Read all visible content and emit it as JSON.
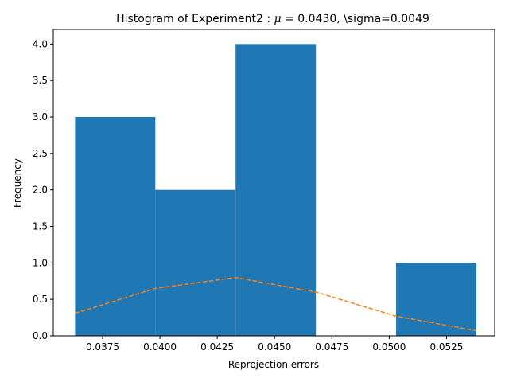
{
  "chart_data": {
    "type": "bar",
    "title": "Histogram of Experiment2 : μ = 0.0430, \\sigma=0.0049",
    "title_parts": {
      "prefix": "Histogram of Experiment2 : ",
      "mu_symbol": "μ",
      "mu_rest": " = 0.0430, ",
      "sigma_text": "\\sigma=0.0049"
    },
    "xlabel": "Reprojection errors",
    "ylabel": "Frequency",
    "xlim": [
      0.03535,
      0.0546
    ],
    "ylim": [
      0,
      4.2
    ],
    "grid": false,
    "histogram": {
      "bin_edges": [
        0.0363,
        0.0398,
        0.0433,
        0.0468,
        0.0503,
        0.0538
      ],
      "counts": [
        3,
        2,
        4,
        0,
        1
      ],
      "color": "#1f77b4"
    },
    "density_line": {
      "style": "dashed",
      "color": "#ff7f0e",
      "x": [
        0.0363,
        0.0398,
        0.0433,
        0.0468,
        0.0503,
        0.0538
      ],
      "y": [
        0.31,
        0.65,
        0.8,
        0.6,
        0.27,
        0.07
      ]
    },
    "x_ticks": [
      {
        "value": 0.0375,
        "label": "0.0375"
      },
      {
        "value": 0.04,
        "label": "0.0400"
      },
      {
        "value": 0.0425,
        "label": "0.0425"
      },
      {
        "value": 0.045,
        "label": "0.0450"
      },
      {
        "value": 0.0475,
        "label": "0.0475"
      },
      {
        "value": 0.05,
        "label": "0.0500"
      },
      {
        "value": 0.0525,
        "label": "0.0525"
      }
    ],
    "y_ticks": [
      {
        "value": 0.0,
        "label": "0.0"
      },
      {
        "value": 0.5,
        "label": "0.5"
      },
      {
        "value": 1.0,
        "label": "1.0"
      },
      {
        "value": 1.5,
        "label": "1.5"
      },
      {
        "value": 2.0,
        "label": "2.0"
      },
      {
        "value": 2.5,
        "label": "2.5"
      },
      {
        "value": 3.0,
        "label": "3.0"
      },
      {
        "value": 3.5,
        "label": "3.5"
      },
      {
        "value": 4.0,
        "label": "4.0"
      }
    ]
  }
}
